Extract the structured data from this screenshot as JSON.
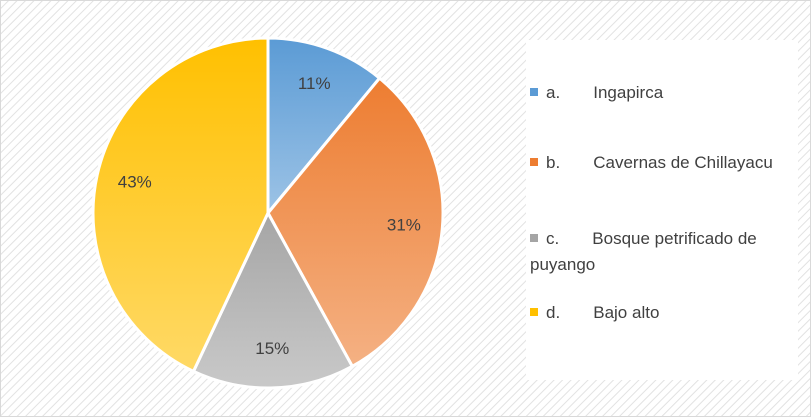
{
  "chart_data": {
    "type": "pie",
    "series": [
      {
        "name": "a.       Ingapirca",
        "color": "#5b9bd5"
      },
      {
        "name": "b.       Cavernas de Chillayacu",
        "color": "#ed7d31"
      },
      {
        "name": "c.       Bosque petrificado de puyango",
        "color": "#a5a5a5"
      },
      {
        "name": "d.       Bajo alto",
        "color": "#ffc000"
      }
    ],
    "values": [
      11,
      31,
      15,
      43
    ],
    "value_labels": [
      "11%",
      "31%",
      "15%",
      "43%"
    ],
    "legend": "right"
  }
}
